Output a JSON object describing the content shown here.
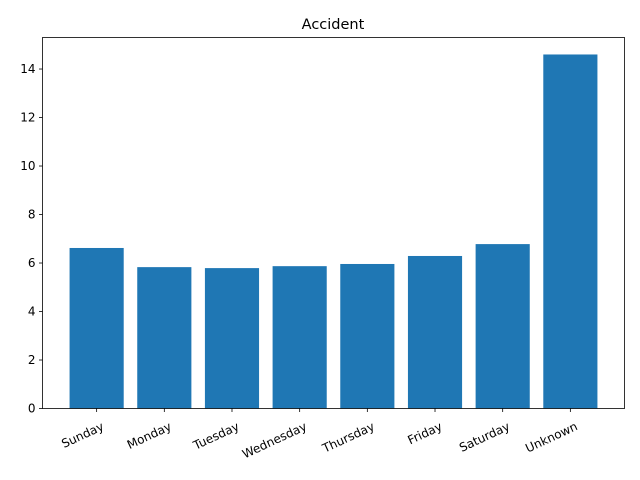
{
  "chart_data": {
    "type": "bar",
    "title": "Accident",
    "xlabel": "",
    "ylabel": "",
    "categories": [
      "Sunday",
      "Monday",
      "Tuesday",
      "Wednesday",
      "Thursday",
      "Friday",
      "Saturday",
      "Unknown"
    ],
    "values": [
      6.62,
      5.83,
      5.79,
      5.87,
      5.96,
      6.29,
      6.78,
      14.6
    ],
    "ylim": [
      0,
      15.3
    ],
    "yticks": [
      0,
      2,
      4,
      6,
      8,
      10,
      12,
      14
    ],
    "bar_color": "#1f77b4",
    "grid": false,
    "legend": "none"
  }
}
